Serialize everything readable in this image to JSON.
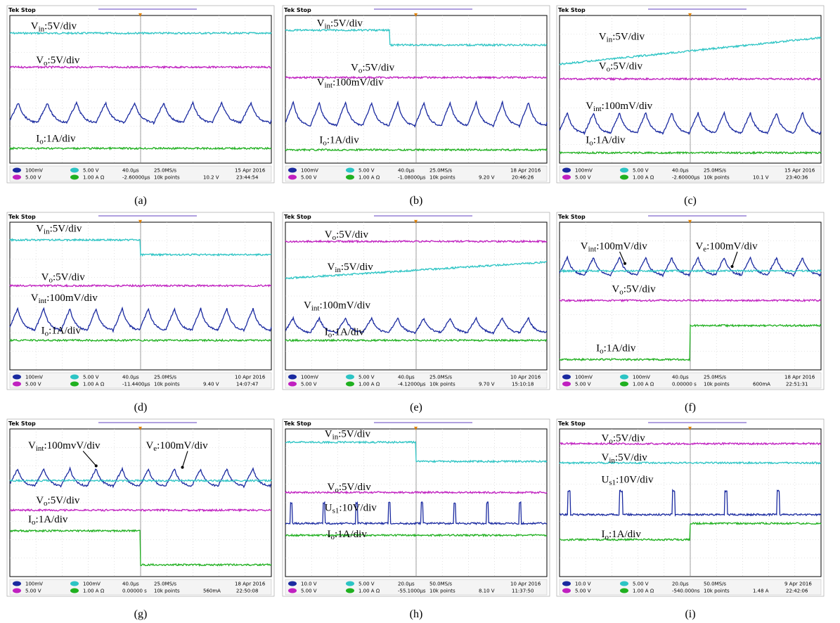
{
  "header": "Tek Stop",
  "panels": [
    {
      "caption": "(a)",
      "labels": [
        "Vin:5V/div",
        "Vo:5V/div",
        "Io:1A/div"
      ],
      "status": {
        "ch1": "100mV",
        "ch2": "5.00 V",
        "ch3": "5.00 V",
        "ch4": "1.00 A Ω",
        "time": "40.0µs",
        "rate": "25.0MS/s",
        "offset": "-2.60000µs",
        "points": "10k points",
        "trigger": "10.2 V",
        "date": "15 Apr 2016",
        "clock": "23:44:54"
      }
    },
    {
      "caption": "(b)",
      "labels": [
        "Vin:5V/div",
        "Vo:5V/div",
        "Vint:100mV/div",
        "Io:1A/div"
      ],
      "status": {
        "ch1": "100mV",
        "ch2": "5.00 V",
        "ch3": "5.00 V",
        "ch4": "1.00 A Ω",
        "time": "40.0µs",
        "rate": "25.0MS/s",
        "offset": "-1.08000µs",
        "points": "10k points",
        "trigger": "9.20 V",
        "date": "18 Apr 2016",
        "clock": "20:46:26"
      }
    },
    {
      "caption": "(c)",
      "labels": [
        "Vin:5V/div",
        "Vo:5V/div",
        "Vint:100mV/div",
        "Io:1A/div"
      ],
      "status": {
        "ch1": "100mV",
        "ch2": "5.00 V",
        "ch3": "5.00 V",
        "ch4": "1.00 A Ω",
        "time": "40.0µs",
        "rate": "25.0MS/s",
        "offset": "-2.60000µs",
        "points": "10k points",
        "trigger": "10.1 V",
        "date": "15 Apr 2016",
        "clock": "23:40:36"
      }
    },
    {
      "caption": "(d)",
      "labels": [
        "Vin:5V/div",
        "Vo:5V/div",
        "Vint:100mV/div",
        "Io:1A/div"
      ],
      "status": {
        "ch1": "100mV",
        "ch2": "5.00 V",
        "ch3": "5.00 V",
        "ch4": "1.00 A Ω",
        "time": "40.0µs",
        "rate": "25.0MS/s",
        "offset": "-11.4400µs",
        "points": "10k points",
        "trigger": "9.40 V",
        "date": "10 Apr 2016",
        "clock": "14:07:47"
      }
    },
    {
      "caption": "(e)",
      "labels": [
        "Vo:5V/div",
        "Vin:5V/div",
        "Vint:100mV/div",
        "Io:1A/div"
      ],
      "status": {
        "ch1": "100mV",
        "ch2": "5.00 V",
        "ch3": "5.00 V",
        "ch4": "1.00 A Ω",
        "time": "40.0µs",
        "rate": "25.0MS/s",
        "offset": "-4.12000µs",
        "points": "10k points",
        "trigger": "9.70 V",
        "date": "10 Apr 2016",
        "clock": "15:10:18"
      }
    },
    {
      "caption": "(f)",
      "labels": [
        "Vint:100mV/div",
        "Ve:100mV/div",
        "Vo:5V/div",
        "Io:1A/div"
      ],
      "status": {
        "ch1": "100mV",
        "ch2": "100mV",
        "ch3": "5.00 V",
        "ch4": "1.00 A Ω",
        "time": "40.0µs",
        "rate": "25.0MS/s",
        "offset": "0.00000 s",
        "points": "10k points",
        "trigger": "600mA",
        "date": "18 Apr 2016",
        "clock": "22:51:31"
      }
    },
    {
      "caption": "(g)",
      "labels": [
        "Vint:100mvV/div",
        "Ve:100mV/div",
        "Vo:5V/div",
        "Io:1A/div"
      ],
      "status": {
        "ch1": "100mV",
        "ch2": "100mV",
        "ch3": "5.00 V",
        "ch4": "1.00 A Ω",
        "time": "40.0µs",
        "rate": "25.0MS/s",
        "offset": "0.00000 s",
        "points": "10k points",
        "trigger": "560mA",
        "date": "18 Apr 2016",
        "clock": "22:50:08"
      }
    },
    {
      "caption": "(h)",
      "labels": [
        "Vin:5V/div",
        "Vo:5V/div",
        "Us1:10V/div",
        "Io:1A/div"
      ],
      "status": {
        "ch1": "10.0 V",
        "ch2": "5.00 V",
        "ch3": "5.00 V",
        "ch4": "1.00 A Ω",
        "time": "20.0µs",
        "rate": "50.0MS/s",
        "offset": "-55.1000µs",
        "points": "10k points",
        "trigger": "8.10 V",
        "date": "10 Apr 2016",
        "clock": "11:37:50"
      }
    },
    {
      "caption": "(i)",
      "labels": [
        "Vo:5V/div",
        "Vin:5V/div",
        "Us1:10V/div",
        "Io:1A/div"
      ],
      "status": {
        "ch1": "10.0 V",
        "ch2": "5.00 V",
        "ch3": "5.00 V",
        "ch4": "1.00 A Ω",
        "time": "20.0µs",
        "rate": "50.0MS/s",
        "offset": "-540.000ns",
        "points": "10k points",
        "trigger": "1.48 A",
        "date": "9 Apr 2016",
        "clock": "22:42:06"
      }
    }
  ]
}
